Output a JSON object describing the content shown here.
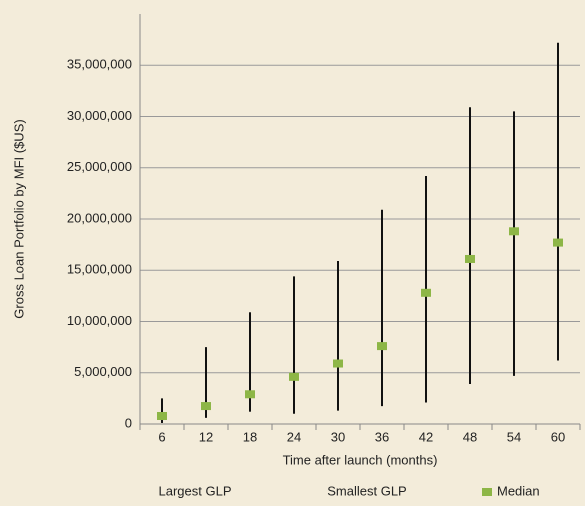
{
  "chart_data": {
    "type": "hilo",
    "x_label": "Time after launch (months)",
    "y_label": "Gross Loan Portfolio by MFI ($US)",
    "categories": [
      "6",
      "12",
      "18",
      "24",
      "30",
      "36",
      "42",
      "48",
      "54",
      "60"
    ],
    "series": [
      {
        "name": "Largest GLP",
        "color": "#111111",
        "values": [
          2500000,
          7500000,
          10900000,
          14400000,
          15900000,
          20900000,
          24200000,
          30900000,
          30500000,
          37200000
        ]
      },
      {
        "name": "Smallest GLP",
        "color": "#111111",
        "values": [
          100000,
          600000,
          1200000,
          1000000,
          1300000,
          1750000,
          2100000,
          3900000,
          4700000,
          6200000
        ]
      },
      {
        "name": "Median",
        "color": "#8db646",
        "values": [
          780000,
          1750000,
          2900000,
          4600000,
          5900000,
          7600000,
          12800000,
          16100000,
          18800000,
          17700000
        ]
      }
    ],
    "ylim": [
      0,
      40000000
    ],
    "yticks": [
      0,
      {
        "value": 5000000,
        "label": "5,000,000"
      },
      {
        "value": 10000000,
        "label": "10,000,000"
      },
      {
        "value": 15000000,
        "label": "15,000,000"
      },
      {
        "value": 20000000,
        "label": "20,000,000"
      },
      {
        "value": 25000000,
        "label": "25,000,000"
      },
      {
        "value": 30000000,
        "label": "30,000,000"
      },
      {
        "value": 35000000,
        "label": "35,000,000"
      }
    ],
    "grid": true
  }
}
